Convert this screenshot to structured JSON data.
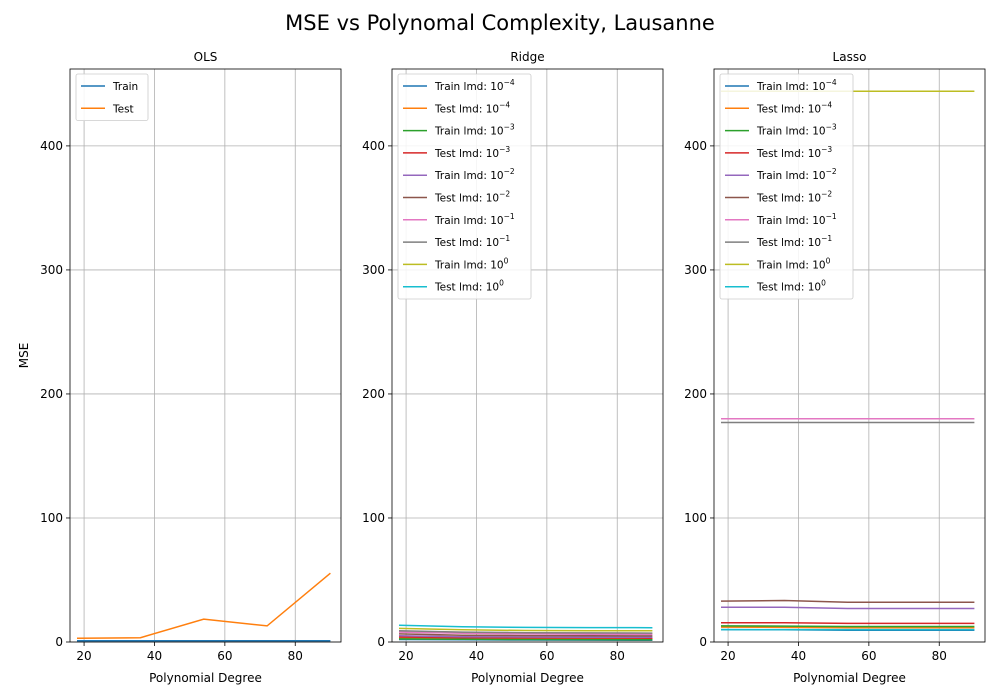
{
  "figure": {
    "title": "MSE vs Polynomal Complexity, Lausanne"
  },
  "chart_data": [
    {
      "type": "line",
      "title": "OLS",
      "xlabel": "Polynomial Degree",
      "ylabel": "MSE",
      "xlim": [
        16,
        93
      ],
      "ylim": [
        0,
        462
      ],
      "xticks": [
        20,
        40,
        60,
        80
      ],
      "yticks": [
        0,
        100,
        200,
        300,
        400
      ],
      "grid": true,
      "legend_position": "upper left",
      "x": [
        18,
        36,
        54,
        72,
        90
      ],
      "series": [
        {
          "name": "Train",
          "color": "#1f77b4",
          "values": [
            1.0,
            1.0,
            1.0,
            1.0,
            1.0
          ]
        },
        {
          "name": "Test",
          "color": "#ff7f0e",
          "values": [
            3.0,
            3.5,
            18.5,
            13.0,
            55.5
          ]
        }
      ]
    },
    {
      "type": "line",
      "title": "Ridge",
      "xlabel": "Polynomial Degree",
      "ylabel": "",
      "xlim": [
        16,
        93
      ],
      "ylim": [
        0,
        462
      ],
      "xticks": [
        20,
        40,
        60,
        80
      ],
      "yticks": [
        0,
        100,
        200,
        300,
        400
      ],
      "grid": true,
      "legend_position": "upper left",
      "x": [
        18,
        36,
        54,
        72,
        90
      ],
      "series": [
        {
          "name": "Train lmd: 10",
          "exp": "−4",
          "color": "#1f77b4",
          "values": [
            2.0,
            1.8,
            1.6,
            1.5,
            1.4
          ]
        },
        {
          "name": "Test lmd: 10",
          "exp": "−4",
          "color": "#ff7f0e",
          "values": [
            3.5,
            3.2,
            3.0,
            2.9,
            2.8
          ]
        },
        {
          "name": "Train lmd: 10",
          "exp": "−3",
          "color": "#2ca02c",
          "values": [
            2.5,
            2.2,
            2.0,
            1.9,
            1.8
          ]
        },
        {
          "name": "Test lmd: 10",
          "exp": "−3",
          "color": "#d62728",
          "values": [
            4.0,
            3.5,
            3.3,
            3.2,
            3.1
          ]
        },
        {
          "name": "Train lmd: 10",
          "exp": "−2",
          "color": "#9467bd",
          "values": [
            5.0,
            4.3,
            4.0,
            3.9,
            3.8
          ]
        },
        {
          "name": "Test lmd: 10",
          "exp": "−2",
          "color": "#8c564b",
          "values": [
            6.5,
            5.5,
            5.2,
            5.0,
            4.9
          ]
        },
        {
          "name": "Train lmd: 10",
          "exp": "−1",
          "color": "#e377c2",
          "values": [
            8.0,
            7.0,
            6.5,
            6.3,
            6.2
          ]
        },
        {
          "name": "Test lmd: 10",
          "exp": "−1",
          "color": "#7f7f7f",
          "values": [
            9.0,
            8.0,
            7.5,
            7.3,
            7.2
          ]
        },
        {
          "name": "Train lmd: 10",
          "exp": "0",
          "color": "#bcbd22",
          "values": [
            11.0,
            9.8,
            9.3,
            9.1,
            9.0
          ]
        },
        {
          "name": "Test lmd: 10",
          "exp": "0",
          "color": "#17becf",
          "values": [
            13.5,
            12.3,
            11.8,
            11.6,
            11.5
          ]
        }
      ]
    },
    {
      "type": "line",
      "title": "Lasso",
      "xlabel": "Polynomial Degree",
      "ylabel": "",
      "xlim": [
        16,
        93
      ],
      "ylim": [
        0,
        462
      ],
      "xticks": [
        20,
        40,
        60,
        80
      ],
      "yticks": [
        0,
        100,
        200,
        300,
        400
      ],
      "grid": true,
      "legend_position": "upper left",
      "x": [
        18,
        36,
        54,
        72,
        90
      ],
      "series": [
        {
          "name": "Train lmd: 10",
          "exp": "−4",
          "color": "#1f77b4",
          "values": [
            10.0,
            9.8,
            9.5,
            9.5,
            9.5
          ]
        },
        {
          "name": "Test lmd: 10",
          "exp": "−4",
          "color": "#ff7f0e",
          "values": [
            12.0,
            11.8,
            11.5,
            11.5,
            11.5
          ]
        },
        {
          "name": "Train lmd: 10",
          "exp": "−3",
          "color": "#2ca02c",
          "values": [
            13.0,
            12.8,
            12.5,
            12.5,
            12.5
          ]
        },
        {
          "name": "Test lmd: 10",
          "exp": "−3",
          "color": "#d62728",
          "values": [
            15.5,
            15.5,
            15.0,
            15.0,
            15.0
          ]
        },
        {
          "name": "Train lmd: 10",
          "exp": "−2",
          "color": "#9467bd",
          "values": [
            28.0,
            28.0,
            27.0,
            27.0,
            27.0
          ]
        },
        {
          "name": "Test lmd: 10",
          "exp": "−2",
          "color": "#8c564b",
          "values": [
            33.0,
            33.5,
            32.0,
            32.0,
            32.0
          ]
        },
        {
          "name": "Train lmd: 10",
          "exp": "−1",
          "color": "#e377c2",
          "values": [
            180.0,
            180.0,
            180.0,
            180.0,
            180.0
          ]
        },
        {
          "name": "Test lmd: 10",
          "exp": "−1",
          "color": "#7f7f7f",
          "values": [
            177.0,
            177.0,
            177.0,
            177.0,
            177.0
          ]
        },
        {
          "name": "Train lmd: 10",
          "exp": "0",
          "color": "#bcbd22",
          "values": [
            444.0,
            444.0,
            444.0,
            444.0,
            444.0
          ]
        },
        {
          "name": "Test lmd: 10",
          "exp": "0",
          "color": "#17becf",
          "values": [
            10.0,
            10.0,
            10.0,
            10.0,
            10.0
          ]
        }
      ]
    }
  ]
}
